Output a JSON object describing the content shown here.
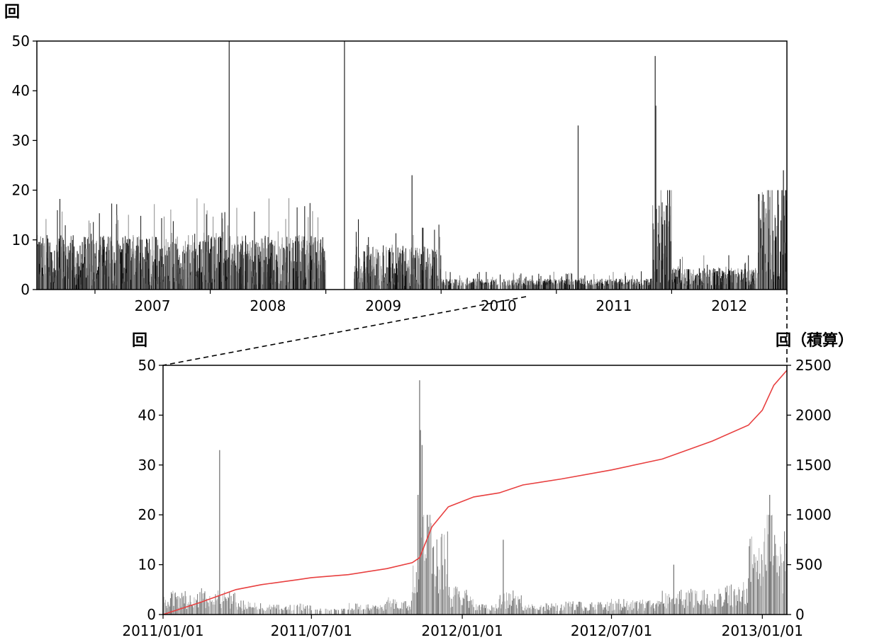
{
  "chart_data": [
    {
      "type": "bar",
      "ylabel": "回",
      "ylim": [
        0,
        50
      ],
      "yticks": [
        "0",
        "10",
        "20",
        "30",
        "40",
        "50"
      ],
      "xlim": [
        "2006/07/01",
        "2012/12/31"
      ],
      "xticks": [
        "2007",
        "2008",
        "2009",
        "2010",
        "2011",
        "2012"
      ],
      "bar_color": "#000000",
      "notable_peaks": [
        {
          "date": "2008/03/01",
          "value": 50
        },
        {
          "date": "2009/03/01",
          "value": 50
        },
        {
          "date": "2009/10/01",
          "value": 23
        },
        {
          "date": "2011/03/11",
          "value": 33
        },
        {
          "date": "2011/11/10",
          "value": 47
        },
        {
          "date": "2011/11/12",
          "value": 37
        },
        {
          "date": "2012/12/20",
          "value": 24
        }
      ],
      "approximate_levels": [
        {
          "from": "2006/07",
          "to": "2008/12",
          "typical": 5
        },
        {
          "from": "2009/01",
          "to": "2009/02",
          "typical": 0
        },
        {
          "from": "2009/04",
          "to": "2009/12",
          "typical": 4
        },
        {
          "from": "2010/01",
          "to": "2010/12",
          "typical": 1
        },
        {
          "from": "2011/01",
          "to": "2011/10",
          "typical": 1
        },
        {
          "from": "2011/11",
          "to": "2011/12",
          "typical": 8
        },
        {
          "from": "2012/01",
          "to": "2012/09",
          "typical": 2
        },
        {
          "from": "2012/10",
          "to": "2012/12",
          "typical": 10
        }
      ]
    },
    {
      "type": "bar",
      "ylabel": "回",
      "y2label": "回（積算）",
      "ylim": [
        0,
        50
      ],
      "y2lim": [
        0,
        2500
      ],
      "yticks": [
        "0",
        "10",
        "20",
        "30",
        "40",
        "50"
      ],
      "y2ticks": [
        "0",
        "500",
        "1000",
        "1500",
        "2000",
        "2500"
      ],
      "xlim": [
        "2011/01/01",
        "2013/01/31"
      ],
      "xticks": [
        "2011/01/01",
        "2011/07/01",
        "2012/01/01",
        "2012/07/01",
        "2013/01/01"
      ],
      "bar_color": "#9a9a9a",
      "notable_peaks": [
        {
          "date": "2011/03/11",
          "value": 33
        },
        {
          "date": "2011/11/08",
          "value": 24
        },
        {
          "date": "2011/11/10",
          "value": 47
        },
        {
          "date": "2011/11/11",
          "value": 37
        },
        {
          "date": "2011/11/13",
          "value": 34
        },
        {
          "date": "2012/02/20",
          "value": 15
        },
        {
          "date": "2012/09/15",
          "value": 10
        },
        {
          "date": "2013/01/10",
          "value": 24
        }
      ],
      "cumulative": {
        "name": "積算",
        "color": "#e84040",
        "points": [
          {
            "date": "2011/01/01",
            "value": 0
          },
          {
            "date": "2011/02/15",
            "value": 120
          },
          {
            "date": "2011/03/31",
            "value": 250
          },
          {
            "date": "2011/05/01",
            "value": 300
          },
          {
            "date": "2011/06/15",
            "value": 350
          },
          {
            "date": "2011/07/01",
            "value": 370
          },
          {
            "date": "2011/08/15",
            "value": 400
          },
          {
            "date": "2011/10/01",
            "value": 460
          },
          {
            "date": "2011/11/01",
            "value": 520
          },
          {
            "date": "2011/11/10",
            "value": 570
          },
          {
            "date": "2011/11/25",
            "value": 880
          },
          {
            "date": "2011/12/15",
            "value": 1080
          },
          {
            "date": "2012/01/15",
            "value": 1180
          },
          {
            "date": "2012/02/15",
            "value": 1220
          },
          {
            "date": "2012/03/15",
            "value": 1300
          },
          {
            "date": "2012/05/01",
            "value": 1360
          },
          {
            "date": "2012/07/01",
            "value": 1450
          },
          {
            "date": "2012/09/01",
            "value": 1560
          },
          {
            "date": "2012/11/01",
            "value": 1740
          },
          {
            "date": "2012/12/15",
            "value": 1900
          },
          {
            "date": "2013/01/01",
            "value": 2050
          },
          {
            "date": "2013/01/15",
            "value": 2300
          },
          {
            "date": "2013/01/31",
            "value": 2450
          }
        ]
      }
    }
  ]
}
